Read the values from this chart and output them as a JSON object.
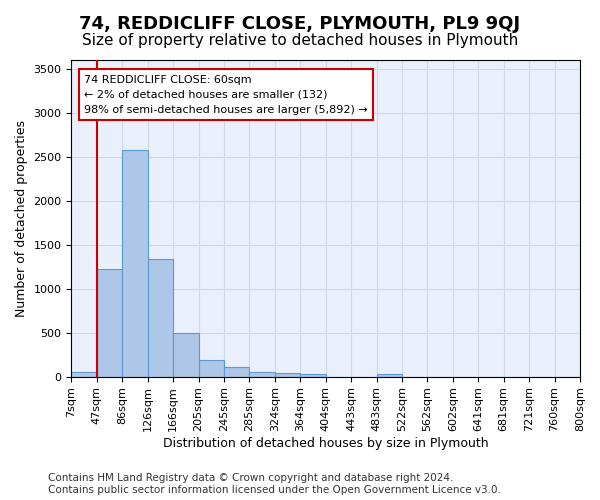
{
  "title": "74, REDDICLIFF CLOSE, PLYMOUTH, PL9 9QJ",
  "subtitle": "Size of property relative to detached houses in Plymouth",
  "xlabel": "Distribution of detached houses by size in Plymouth",
  "ylabel": "Number of detached properties",
  "footer_line1": "Contains HM Land Registry data © Crown copyright and database right 2024.",
  "footer_line2": "Contains public sector information licensed under the Open Government Licence v3.0.",
  "bin_labels": [
    "7sqm",
    "47sqm",
    "86sqm",
    "126sqm",
    "166sqm",
    "205sqm",
    "245sqm",
    "285sqm",
    "324sqm",
    "364sqm",
    "404sqm",
    "443sqm",
    "483sqm",
    "522sqm",
    "562sqm",
    "602sqm",
    "641sqm",
    "681sqm",
    "721sqm",
    "760sqm",
    "800sqm"
  ],
  "bar_values": [
    55,
    1230,
    2580,
    1340,
    500,
    195,
    105,
    50,
    45,
    35,
    0,
    0,
    35,
    0,
    0,
    0,
    0,
    0,
    0,
    0
  ],
  "bar_color": "#aec6e8",
  "bar_edge_color": "#5b9bd5",
  "annotation_line1": "74 REDDICLIFF CLOSE: 60sqm",
  "annotation_line2": "← 2% of detached houses are smaller (132)",
  "annotation_line3": "98% of semi-detached houses are larger (5,892) →",
  "annotation_box_color": "#ffffff",
  "annotation_box_edge_color": "#cc0000",
  "vline_color": "#cc0000",
  "ylim": [
    0,
    3600
  ],
  "yticks": [
    0,
    500,
    1000,
    1500,
    2000,
    2500,
    3000,
    3500
  ],
  "grid_color": "#d0d8e8",
  "bg_color": "#eaf0fb",
  "title_fontsize": 13,
  "subtitle_fontsize": 11,
  "axis_label_fontsize": 9,
  "tick_fontsize": 8,
  "footer_fontsize": 7.5
}
